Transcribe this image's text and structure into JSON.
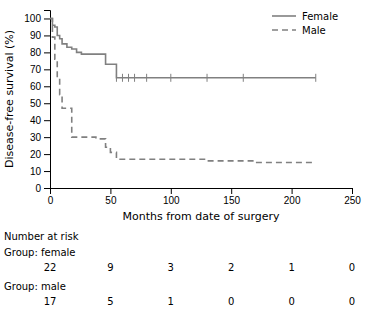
{
  "chart_data": {
    "type": "step",
    "xlabel": "Months from date of surgery",
    "ylabel": "Disease-free survival (%)",
    "xlim": [
      0,
      250
    ],
    "ylim": [
      0,
      105
    ],
    "xticks": [
      0,
      50,
      100,
      150,
      200,
      250
    ],
    "yticks": [
      0,
      10,
      20,
      30,
      40,
      50,
      60,
      70,
      80,
      90,
      100
    ],
    "legend": "upper right",
    "series": [
      {
        "name": "Female",
        "color": "#808080",
        "line_style": "solid",
        "x": [
          0,
          2,
          4,
          6,
          8,
          10,
          14,
          18,
          22,
          26,
          30,
          38,
          46,
          50,
          55,
          60,
          65,
          70,
          80,
          90,
          100,
          110,
          120,
          130,
          140,
          150,
          160,
          170,
          180,
          190,
          200,
          210,
          220
        ],
        "values": [
          100,
          96,
          95,
          90,
          88,
          85,
          83,
          82,
          80,
          79,
          79,
          79,
          73,
          73,
          65,
          65,
          65,
          65,
          65,
          65,
          65,
          65,
          65,
          65,
          65,
          65,
          65,
          65,
          65,
          65,
          65,
          65,
          65
        ],
        "censored_x": [
          55,
          60,
          65,
          70,
          80,
          100,
          130,
          160,
          220
        ],
        "censored_values": [
          65,
          65,
          65,
          65,
          65,
          65,
          65,
          65,
          65
        ]
      },
      {
        "name": "Male",
        "color": "#808080",
        "line_style": "dashed",
        "x": [
          0,
          2,
          4,
          6,
          8,
          10,
          14,
          18,
          22,
          26,
          30,
          38,
          46,
          50,
          55,
          60,
          65,
          70,
          80,
          90,
          100,
          110,
          120,
          130,
          140,
          150,
          160,
          170,
          180,
          190,
          200,
          210,
          220
        ],
        "values": [
          100,
          89,
          76,
          65,
          55,
          47,
          47,
          30,
          30,
          30,
          30,
          29,
          24,
          21,
          17,
          17,
          17,
          17,
          17,
          17,
          17,
          17,
          17,
          16,
          16,
          16,
          16,
          15,
          15,
          15,
          15,
          15,
          15
        ]
      }
    ],
    "risk_table": {
      "title": "Number at risk",
      "times": [
        0,
        50,
        100,
        150,
        200,
        250
      ],
      "rows": [
        {
          "label": "Group: female",
          "counts": [
            22,
            9,
            3,
            2,
            1,
            0
          ]
        },
        {
          "label": "Group: male",
          "counts": [
            17,
            5,
            1,
            0,
            0,
            0
          ]
        }
      ]
    }
  }
}
